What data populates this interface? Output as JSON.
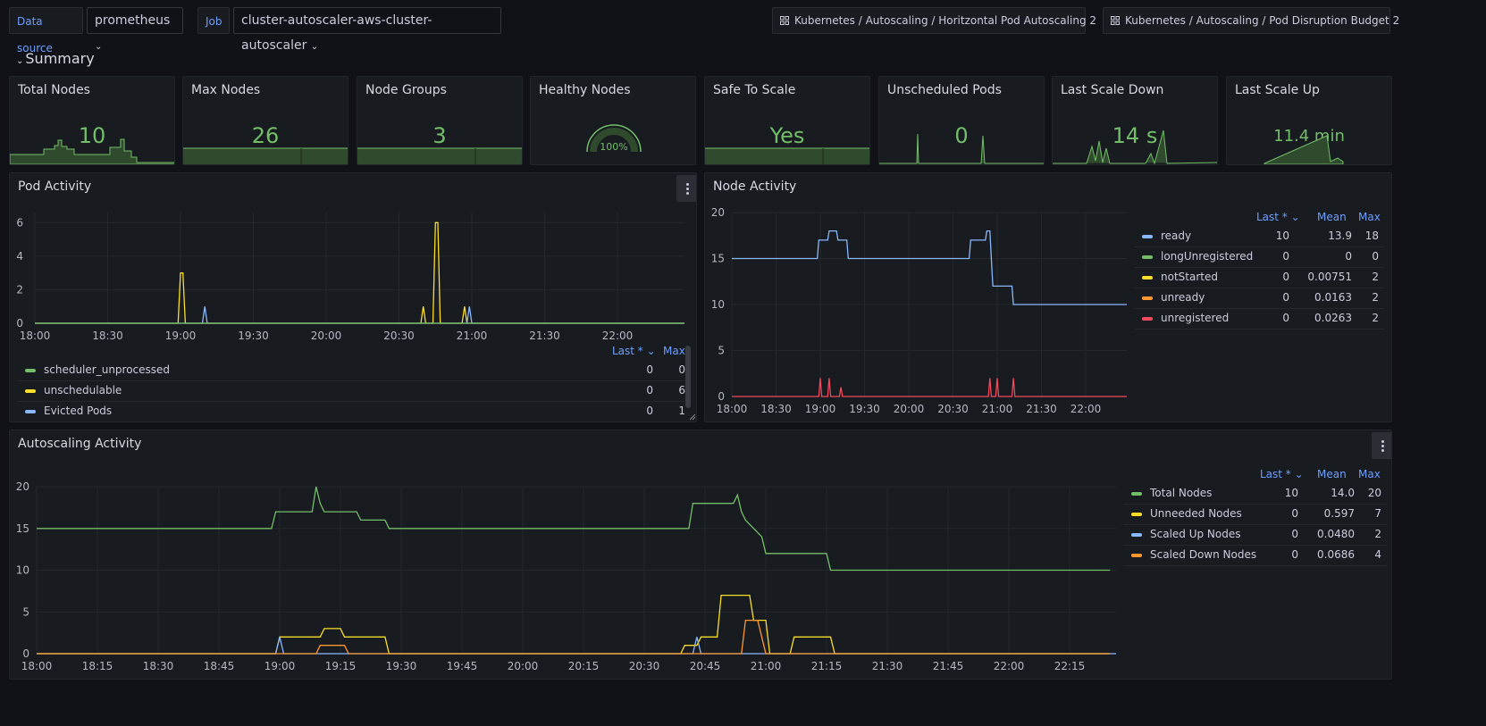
{
  "variables": {
    "datasource_label": "Data source",
    "datasource_value": "prometheus",
    "job_label": "Job",
    "job_value": "cluster-autoscaler-aws-cluster-autoscaler"
  },
  "links": [
    {
      "label": "Kubernetes / Autoscaling / Horitzontal Pod Autoscaling 2",
      "icon": "dashboard-grid-icon"
    },
    {
      "label": "Kubernetes / Autoscaling / Pod Disruption Budget 2",
      "icon": "dashboard-grid-icon"
    }
  ],
  "row": {
    "title": "Summary",
    "icon": "chevron-down-icon"
  },
  "stats": [
    {
      "title": "Total Nodes",
      "value": "10"
    },
    {
      "title": "Max Nodes",
      "value": "26"
    },
    {
      "title": "Node Groups",
      "value": "3"
    },
    {
      "title": "Healthy Nodes",
      "value": "100%",
      "gauge_fraction": 1.0
    },
    {
      "title": "Safe To Scale",
      "value": "Yes"
    },
    {
      "title": "Unscheduled Pods",
      "value": "0"
    },
    {
      "title": "Last Scale Down",
      "value": "14 s"
    },
    {
      "title": "Last Scale Up",
      "value": "11.4 min"
    }
  ],
  "colors": {
    "green": "#73bf69",
    "yellow": "#fade2a",
    "blue": "#8ab8ff",
    "orange": "#ff9830",
    "red": "#f2495c",
    "accent": "#6e9fff",
    "bg": "#111217",
    "panel": "#181b1f"
  },
  "pod_activity": {
    "title": "Pod Activity",
    "legend_headers": {
      "last": "Last *",
      "max": "Max"
    },
    "legend": [
      {
        "name": "scheduler_unprocessed",
        "color": "#73bf69",
        "last": "0",
        "max": "0"
      },
      {
        "name": "unschedulable",
        "color": "#fade2a",
        "last": "0",
        "max": "6"
      },
      {
        "name": "Evicted Pods",
        "color": "#8ab8ff",
        "last": "0",
        "max": "1"
      }
    ]
  },
  "node_activity": {
    "title": "Node Activity",
    "legend_headers": {
      "last": "Last *",
      "mean": "Mean",
      "max": "Max"
    },
    "legend": [
      {
        "name": "ready",
        "color": "#8ab8ff",
        "last": "10",
        "mean": "13.9",
        "max": "18"
      },
      {
        "name": "longUnregistered",
        "color": "#73bf69",
        "last": "0",
        "mean": "0",
        "max": "0"
      },
      {
        "name": "notStarted",
        "color": "#fade2a",
        "last": "0",
        "mean": "0.00751",
        "max": "2"
      },
      {
        "name": "unready",
        "color": "#ff9830",
        "last": "0",
        "mean": "0.0163",
        "max": "2"
      },
      {
        "name": "unregistered",
        "color": "#f2495c",
        "last": "0",
        "mean": "0.0263",
        "max": "2"
      }
    ]
  },
  "autoscaling_activity": {
    "title": "Autoscaling Activity",
    "legend_headers": {
      "last": "Last *",
      "mean": "Mean",
      "max": "Max"
    },
    "legend": [
      {
        "name": "Total Nodes",
        "color": "#73bf69",
        "last": "10",
        "mean": "14.0",
        "max": "20"
      },
      {
        "name": "Unneeded Nodes",
        "color": "#fade2a",
        "last": "0",
        "mean": "0.597",
        "max": "7"
      },
      {
        "name": "Scaled Up Nodes",
        "color": "#8ab8ff",
        "last": "0",
        "mean": "0.0480",
        "max": "2"
      },
      {
        "name": "Scaled Down Nodes",
        "color": "#ff9830",
        "last": "0",
        "mean": "0.0686",
        "max": "4"
      }
    ]
  },
  "chart_data": [
    {
      "type": "line",
      "title": "Pod Activity",
      "x_ticks": [
        "18:00",
        "18:30",
        "19:00",
        "19:30",
        "20:00",
        "20:30",
        "21:00",
        "21:30",
        "22:00"
      ],
      "y_ticks": [
        "0",
        "2",
        "4",
        "6"
      ],
      "ylim": [
        0,
        6.6
      ],
      "series": [
        {
          "name": "unschedulable",
          "color": "#fade2a",
          "x": [
            "18:00",
            "18:59",
            "19:00",
            "19:01",
            "19:02",
            "20:39",
            "20:40",
            "20:41",
            "20:44",
            "20:45",
            "20:46",
            "20:47",
            "20:56",
            "20:57",
            "20:58",
            "23:00"
          ],
          "y": [
            0,
            0,
            3,
            3,
            0,
            0,
            1,
            0,
            0,
            6,
            6,
            0,
            0,
            1,
            0,
            0
          ]
        },
        {
          "name": "Evicted Pods",
          "color": "#8ab8ff",
          "x": [
            "18:00",
            "19:09",
            "19:10",
            "19:11",
            "20:58",
            "20:59",
            "21:00",
            "23:00"
          ],
          "y": [
            0,
            0,
            1,
            0,
            0,
            1,
            0,
            0
          ]
        },
        {
          "name": "scheduler_unprocessed",
          "color": "#73bf69",
          "x": [
            "18:00",
            "23:00"
          ],
          "y": [
            0,
            0
          ]
        }
      ]
    },
    {
      "type": "line",
      "title": "Node Activity",
      "x_ticks": [
        "18:00",
        "18:30",
        "19:00",
        "19:30",
        "20:00",
        "20:30",
        "21:00",
        "21:30",
        "22:00"
      ],
      "y_ticks": [
        "0",
        "5",
        "10",
        "15",
        "20"
      ],
      "ylim": [
        0,
        20
      ],
      "series": [
        {
          "name": "ready",
          "color": "#8ab8ff",
          "x": [
            "18:00",
            "18:58",
            "18:59",
            "19:05",
            "19:06",
            "19:11",
            "19:12",
            "19:18",
            "19:19",
            "20:41",
            "20:42",
            "20:52",
            "20:53",
            "20:55",
            "20:56",
            "20:57",
            "21:10",
            "21:11",
            "23:00"
          ],
          "y": [
            15,
            15,
            17,
            17,
            18,
            18,
            17,
            17,
            15,
            15,
            17,
            17,
            18,
            18,
            15,
            12,
            12,
            10,
            10
          ]
        },
        {
          "name": "unregistered",
          "color": "#f2495c",
          "x": [
            "18:00",
            "18:59",
            "19:00",
            "19:01",
            "19:05",
            "19:06",
            "19:07",
            "19:13",
            "19:14",
            "19:15",
            "20:54",
            "20:55",
            "20:56",
            "20:59",
            "21:00",
            "21:01",
            "21:10",
            "21:11",
            "21:12",
            "23:00"
          ],
          "y": [
            0,
            0,
            2,
            0,
            0,
            2,
            0,
            0,
            1,
            0,
            0,
            2,
            0,
            0,
            2,
            0,
            0,
            2,
            0,
            0
          ]
        }
      ]
    },
    {
      "type": "line",
      "title": "Autoscaling Activity",
      "x_ticks": [
        "18:00",
        "18:15",
        "18:30",
        "18:45",
        "19:00",
        "19:15",
        "19:30",
        "19:45",
        "20:00",
        "20:15",
        "20:30",
        "20:45",
        "21:00",
        "21:15",
        "21:30",
        "21:45",
        "22:00",
        "22:15"
      ],
      "y_ticks": [
        "0",
        "5",
        "10",
        "15",
        "20"
      ],
      "ylim": [
        0,
        20
      ],
      "series": [
        {
          "name": "Total Nodes",
          "color": "#73bf69",
          "x": [
            "18:00",
            "18:58",
            "18:59",
            "19:08",
            "19:09",
            "19:10",
            "19:11",
            "19:19",
            "19:20",
            "19:26",
            "19:27",
            "20:41",
            "20:42",
            "20:52",
            "20:53",
            "20:54",
            "20:55",
            "20:59",
            "21:00",
            "21:15",
            "21:16",
            "22:25"
          ],
          "y": [
            15,
            15,
            17,
            17,
            20,
            18,
            17,
            17,
            16,
            16,
            15,
            15,
            18,
            18,
            19,
            17,
            16,
            14,
            12,
            12,
            10,
            10
          ]
        },
        {
          "name": "Unneeded Nodes",
          "color": "#fade2a",
          "x": [
            "18:00",
            "18:59",
            "19:00",
            "19:10",
            "19:11",
            "19:15",
            "19:16",
            "19:26",
            "19:27",
            "20:39",
            "20:40",
            "20:43",
            "20:44",
            "20:48",
            "20:49",
            "20:56",
            "20:57",
            "21:00",
            "21:01",
            "21:06",
            "21:07",
            "21:16",
            "21:17",
            "22:25"
          ],
          "y": [
            0,
            0,
            2,
            2,
            3,
            3,
            2,
            2,
            0,
            0,
            1,
            1,
            2,
            2,
            7,
            7,
            4,
            4,
            0,
            0,
            2,
            2,
            0,
            0
          ]
        },
        {
          "name": "Scaled Up Nodes",
          "color": "#8ab8ff",
          "x": [
            "18:00",
            "18:59",
            "19:00",
            "19:01",
            "20:42",
            "20:43",
            "20:44",
            "23:00"
          ],
          "y": [
            0,
            0,
            2,
            0,
            0,
            2,
            0,
            0
          ]
        },
        {
          "name": "Scaled Down Nodes",
          "color": "#ff9830",
          "x": [
            "18:00",
            "19:09",
            "19:10",
            "19:16",
            "19:17",
            "20:54",
            "20:55",
            "20:58",
            "20:59",
            "21:00",
            "22:25"
          ],
          "y": [
            0,
            0,
            1,
            1,
            0,
            0,
            4,
            4,
            2,
            0,
            0
          ]
        }
      ]
    }
  ]
}
